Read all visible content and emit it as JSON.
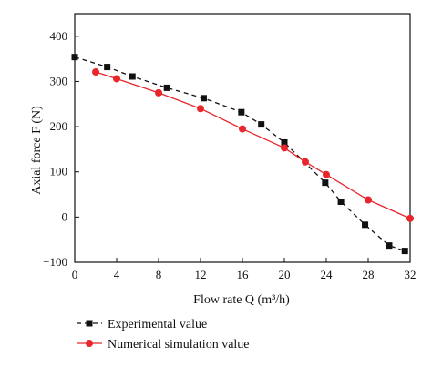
{
  "chart_data": {
    "type": "line",
    "xlabel": "Flow rate Q (m³/h)",
    "ylabel": "Axial force F (N)",
    "xlim": [
      0,
      32
    ],
    "ylim": [
      -100,
      450
    ],
    "xticks": [
      "0",
      "4",
      "8",
      "12",
      "16",
      "20",
      "24",
      "28",
      "32"
    ],
    "yticks": [
      "−100",
      "0",
      "100",
      "200",
      "300",
      "400"
    ],
    "grid": false,
    "legend_position": "bottom-left",
    "series": [
      {
        "name": "Experimental value",
        "color": "#111111",
        "marker": "square",
        "line_style": "dashed",
        "x": [
          0,
          3.1,
          5.5,
          8.8,
          12.3,
          15.9,
          17.8,
          20.0,
          23.9,
          25.4,
          27.7,
          30.0,
          31.5
        ],
        "y": [
          354,
          332,
          311,
          286,
          263,
          232,
          205,
          165,
          76,
          34,
          -17,
          -63,
          -75
        ]
      },
      {
        "name": "Numerical simulation value",
        "color": "#e8262b",
        "marker": "circle",
        "line_style": "solid",
        "x": [
          2.0,
          4.0,
          8.0,
          12.0,
          16.0,
          20.0,
          22.0,
          24.0,
          28.0,
          32.0
        ],
        "y": [
          321,
          306,
          275,
          240,
          195,
          153,
          122,
          94,
          38,
          -3
        ]
      }
    ]
  }
}
